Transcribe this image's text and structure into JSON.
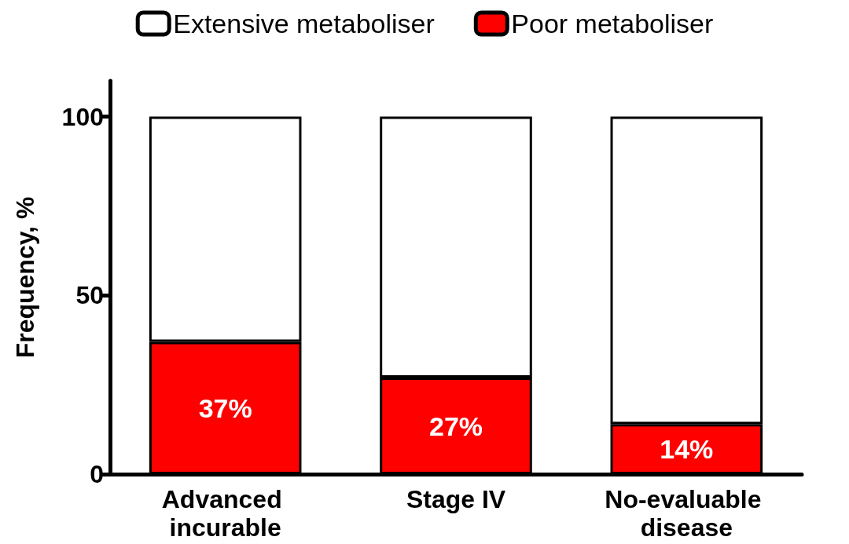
{
  "chart_data": {
    "type": "bar",
    "stacked": true,
    "ylabel": "Frequency, %",
    "categories": [
      "Advanced incurable",
      "Stage IV",
      "No-evaluable disease"
    ],
    "series": [
      {
        "name": "Poor metaboliser",
        "color": "#ff0000",
        "values": [
          37,
          27,
          14
        ],
        "value_labels": [
          "37%",
          "27%",
          "14%"
        ]
      },
      {
        "name": "Extensive metaboliser",
        "color": "#ffffff",
        "values": [
          63,
          73,
          86
        ]
      }
    ],
    "ylim": [
      0,
      110
    ],
    "yticks": [
      0,
      50,
      100
    ],
    "grid": false,
    "legend": "top"
  }
}
